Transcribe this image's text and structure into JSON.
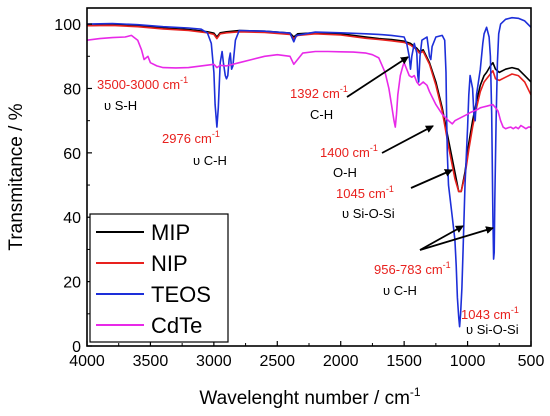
{
  "chart_data": {
    "type": "line",
    "xlabel": "Wavelenght number / cm",
    "xlabel_superscript": "-1",
    "ylabel": "Transmitance / %",
    "xlim": [
      4000,
      500
    ],
    "ylim": [
      0,
      105
    ],
    "x_ticks": [
      "4000",
      "3500",
      "3000",
      "2500",
      "2000",
      "1500",
      "1000",
      "500"
    ],
    "y_ticks": [
      "0",
      "20",
      "40",
      "60",
      "80",
      "100"
    ],
    "grid": false,
    "legend_position": "bottom-left",
    "series": [
      {
        "name": "MIP",
        "color": "#000000",
        "points": [
          [
            4000,
            99.5
          ],
          [
            3800,
            99.8
          ],
          [
            3600,
            99.5
          ],
          [
            3400,
            98.8
          ],
          [
            3200,
            98.3
          ],
          [
            3050,
            97.6
          ],
          [
            3000,
            97.2
          ],
          [
            2976,
            96
          ],
          [
            2950,
            97.3
          ],
          [
            2900,
            97.6
          ],
          [
            2800,
            98
          ],
          [
            2600,
            97.8
          ],
          [
            2400,
            97.2
          ],
          [
            2370,
            96
          ],
          [
            2340,
            97
          ],
          [
            2200,
            97.3
          ],
          [
            2000,
            97
          ],
          [
            1800,
            96
          ],
          [
            1700,
            95.5
          ],
          [
            1600,
            95.2
          ],
          [
            1500,
            94.7
          ],
          [
            1450,
            94
          ],
          [
            1400,
            92.5
          ],
          [
            1380,
            91.5
          ],
          [
            1350,
            92
          ],
          [
            1300,
            88
          ],
          [
            1250,
            82
          ],
          [
            1200,
            74
          ],
          [
            1150,
            64
          ],
          [
            1100,
            54
          ],
          [
            1070,
            48
          ],
          [
            1050,
            48
          ],
          [
            1020,
            54
          ],
          [
            990,
            63
          ],
          [
            960,
            70
          ],
          [
            930,
            76
          ],
          [
            900,
            81
          ],
          [
            870,
            84
          ],
          [
            850,
            85
          ],
          [
            820,
            87
          ],
          [
            800,
            88
          ],
          [
            780,
            86
          ],
          [
            750,
            85
          ],
          [
            700,
            86
          ],
          [
            650,
            86.5
          ],
          [
            600,
            86
          ],
          [
            550,
            84
          ],
          [
            500,
            82
          ]
        ]
      },
      {
        "name": "NIP",
        "color": "#e8211e",
        "points": [
          [
            4000,
            99.5
          ],
          [
            3800,
            99.6
          ],
          [
            3600,
            99.2
          ],
          [
            3400,
            98.5
          ],
          [
            3200,
            98
          ],
          [
            3050,
            97.3
          ],
          [
            3000,
            96.8
          ],
          [
            2976,
            95.5
          ],
          [
            2950,
            97
          ],
          [
            2900,
            97.3
          ],
          [
            2800,
            97.6
          ],
          [
            2600,
            97.4
          ],
          [
            2400,
            96.8
          ],
          [
            2370,
            95.5
          ],
          [
            2340,
            96.5
          ],
          [
            2200,
            97
          ],
          [
            2000,
            96.6
          ],
          [
            1800,
            95.6
          ],
          [
            1700,
            95.2
          ],
          [
            1600,
            94.8
          ],
          [
            1500,
            94.3
          ],
          [
            1450,
            93.5
          ],
          [
            1400,
            92
          ],
          [
            1380,
            91
          ],
          [
            1350,
            91.5
          ],
          [
            1300,
            87.5
          ],
          [
            1250,
            81
          ],
          [
            1200,
            73
          ],
          [
            1150,
            62
          ],
          [
            1100,
            52
          ],
          [
            1070,
            48
          ],
          [
            1050,
            48
          ],
          [
            1020,
            53
          ],
          [
            990,
            61
          ],
          [
            960,
            68
          ],
          [
            930,
            74
          ],
          [
            900,
            79
          ],
          [
            870,
            82
          ],
          [
            850,
            83
          ],
          [
            820,
            84.5
          ],
          [
            800,
            85.5
          ],
          [
            780,
            83
          ],
          [
            750,
            82.5
          ],
          [
            700,
            83.5
          ],
          [
            650,
            84.5
          ],
          [
            600,
            84
          ],
          [
            550,
            82
          ],
          [
            500,
            78
          ]
        ]
      },
      {
        "name": "TEOS",
        "color": "#1d2fd9",
        "points": [
          [
            4000,
            100
          ],
          [
            3800,
            100.2
          ],
          [
            3600,
            99.8
          ],
          [
            3400,
            99.2
          ],
          [
            3200,
            98.8
          ],
          [
            3100,
            98.4
          ],
          [
            3050,
            97.2
          ],
          [
            3020,
            94
          ],
          [
            3000,
            85
          ],
          [
            2990,
            75
          ],
          [
            2976,
            68
          ],
          [
            2965,
            74
          ],
          [
            2950,
            88
          ],
          [
            2935,
            91.5
          ],
          [
            2925,
            88
          ],
          [
            2910,
            84
          ],
          [
            2900,
            83
          ],
          [
            2890,
            84
          ],
          [
            2880,
            89
          ],
          [
            2870,
            91
          ],
          [
            2860,
            86
          ],
          [
            2850,
            87
          ],
          [
            2830,
            95
          ],
          [
            2800,
            98
          ],
          [
            2600,
            97.8
          ],
          [
            2400,
            97.2
          ],
          [
            2370,
            94.5
          ],
          [
            2350,
            96.5
          ],
          [
            2200,
            97.5
          ],
          [
            2000,
            97.3
          ],
          [
            1800,
            97
          ],
          [
            1700,
            96.8
          ],
          [
            1600,
            96.5
          ],
          [
            1500,
            96
          ],
          [
            1480,
            94
          ],
          [
            1460,
            90
          ],
          [
            1450,
            86
          ],
          [
            1440,
            90
          ],
          [
            1420,
            94
          ],
          [
            1400,
            91
          ],
          [
            1392,
            84
          ],
          [
            1385,
            82
          ],
          [
            1375,
            90
          ],
          [
            1360,
            95
          ],
          [
            1320,
            96
          ],
          [
            1300,
            90
          ],
          [
            1290,
            89
          ],
          [
            1280,
            93
          ],
          [
            1250,
            96
          ],
          [
            1200,
            96.5
          ],
          [
            1180,
            95
          ],
          [
            1170,
            85
          ],
          [
            1165,
            72
          ],
          [
            1160,
            60
          ],
          [
            1150,
            50
          ],
          [
            1120,
            40
          ],
          [
            1100,
            33
          ],
          [
            1090,
            25
          ],
          [
            1080,
            15
          ],
          [
            1070,
            9
          ],
          [
            1063,
            6
          ],
          [
            1055,
            10
          ],
          [
            1045,
            18
          ],
          [
            1035,
            30
          ],
          [
            1020,
            50
          ],
          [
            1000,
            68
          ],
          [
            990,
            78
          ],
          [
            980,
            84
          ],
          [
            960,
            80
          ],
          [
            950,
            72
          ],
          [
            940,
            70
          ],
          [
            930,
            78
          ],
          [
            900,
            86
          ],
          [
            880,
            94
          ],
          [
            870,
            97
          ],
          [
            850,
            99
          ],
          [
            830,
            96
          ],
          [
            820,
            90
          ],
          [
            810,
            72
          ],
          [
            800,
            40
          ],
          [
            795,
            27
          ],
          [
            790,
            29
          ],
          [
            785,
            45
          ],
          [
            775,
            70
          ],
          [
            765,
            88
          ],
          [
            755,
            97
          ],
          [
            740,
            100
          ],
          [
            700,
            101.5
          ],
          [
            650,
            102
          ],
          [
            600,
            101.8
          ],
          [
            550,
            101
          ],
          [
            500,
            99
          ]
        ]
      },
      {
        "name": "CdTe",
        "color": "#e829e8",
        "points": [
          [
            4000,
            95
          ],
          [
            3900,
            95.5
          ],
          [
            3800,
            95.8
          ],
          [
            3700,
            96
          ],
          [
            3650,
            96.5
          ],
          [
            3600,
            95
          ],
          [
            3570,
            92
          ],
          [
            3550,
            89
          ],
          [
            3520,
            90
          ],
          [
            3500,
            88
          ],
          [
            3450,
            87
          ],
          [
            3400,
            86.5
          ],
          [
            3300,
            86.4
          ],
          [
            3200,
            86.5
          ],
          [
            3100,
            87
          ],
          [
            3000,
            87.5
          ],
          [
            2976,
            86.5
          ],
          [
            2950,
            87.2
          ],
          [
            2900,
            87
          ],
          [
            2800,
            88
          ],
          [
            2700,
            89
          ],
          [
            2600,
            90
          ],
          [
            2500,
            90.5
          ],
          [
            2400,
            90
          ],
          [
            2370,
            87.5
          ],
          [
            2340,
            89
          ],
          [
            2300,
            91
          ],
          [
            2200,
            91.5
          ],
          [
            2100,
            91.5
          ],
          [
            2000,
            91.4
          ],
          [
            1900,
            91.3
          ],
          [
            1800,
            91
          ],
          [
            1750,
            90.5
          ],
          [
            1700,
            89.5
          ],
          [
            1650,
            85
          ],
          [
            1620,
            80
          ],
          [
            1600,
            75
          ],
          [
            1580,
            70
          ],
          [
            1570,
            68
          ],
          [
            1560,
            72
          ],
          [
            1550,
            78
          ],
          [
            1530,
            84
          ],
          [
            1510,
            87
          ],
          [
            1500,
            88
          ],
          [
            1480,
            86
          ],
          [
            1460,
            84
          ],
          [
            1440,
            83.5
          ],
          [
            1420,
            84
          ],
          [
            1400,
            82
          ],
          [
            1380,
            81
          ],
          [
            1350,
            82
          ],
          [
            1320,
            81
          ],
          [
            1300,
            79
          ],
          [
            1250,
            75
          ],
          [
            1200,
            72
          ],
          [
            1150,
            70
          ],
          [
            1120,
            69
          ],
          [
            1100,
            70
          ],
          [
            1050,
            71
          ],
          [
            1000,
            72
          ],
          [
            980,
            72.5
          ],
          [
            950,
            73
          ],
          [
            920,
            73.5
          ],
          [
            900,
            74
          ],
          [
            880,
            74.2
          ],
          [
            850,
            74.5
          ],
          [
            820,
            74.8
          ],
          [
            800,
            75
          ],
          [
            780,
            74
          ],
          [
            760,
            73
          ],
          [
            740,
            70
          ],
          [
            720,
            68
          ],
          [
            700,
            67.5
          ],
          [
            680,
            67.8
          ],
          [
            660,
            68
          ],
          [
            640,
            67.5
          ],
          [
            620,
            68
          ],
          [
            600,
            67.5
          ],
          [
            580,
            68.5
          ],
          [
            560,
            68
          ],
          [
            540,
            67.5
          ],
          [
            520,
            68
          ],
          [
            500,
            68
          ]
        ]
      }
    ],
    "annotations": [
      {
        "id": "a1",
        "value": "3500-3000 cm",
        "sup": "-1",
        "mode": "υ S-H"
      },
      {
        "id": "a2",
        "value": "2976 cm",
        "sup": "-1",
        "mode": "υ C-H"
      },
      {
        "id": "a3",
        "value": "1392 cm",
        "sup": "-1",
        "mode": "C-H"
      },
      {
        "id": "a4",
        "value": "1400 cm",
        "sup": "-1",
        "mode": "O-H"
      },
      {
        "id": "a5",
        "value": "1045 cm",
        "sup": "-1",
        "mode": "υ Si-O-Si"
      },
      {
        "id": "a6",
        "value": "956-783 cm",
        "sup": "-1",
        "mode": "υ C-H"
      },
      {
        "id": "a7",
        "value": "1043 cm",
        "sup": "-1",
        "mode": "υ Si-O-Si"
      }
    ]
  }
}
